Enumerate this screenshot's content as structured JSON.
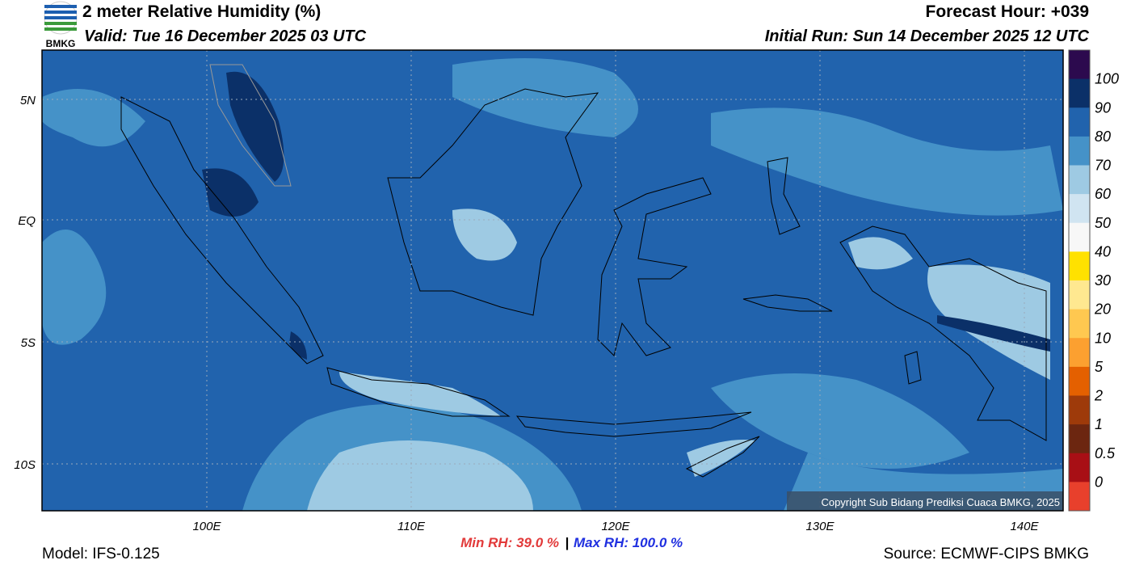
{
  "header": {
    "logo": "BMKG",
    "title": "2 meter Relative Humidity (%)",
    "valid": "Valid: Tue 16 December 2025 03 UTC",
    "forecast": "Forecast Hour: +039",
    "initial": "Initial Run: Sun 14 December 2025 12 UTC"
  },
  "map": {
    "lat_labels": [
      "5N",
      "EQ",
      "5S",
      "10S"
    ],
    "lon_labels": [
      "100E",
      "110E",
      "120E",
      "130E",
      "140E"
    ],
    "copyright": "Copyright Sub Bidang Prediksi Cuaca BMKG, 2025"
  },
  "colorbar": {
    "labels": [
      "100",
      "90",
      "80",
      "70",
      "60",
      "50",
      "40",
      "30",
      "20",
      "10",
      "5",
      "2",
      "1",
      "0.5",
      "0"
    ],
    "colors": [
      "#2c0a4e",
      "#0b3068",
      "#2163ad",
      "#4592c8",
      "#9ecae3",
      "#d0e4f1",
      "#f7f7f7",
      "#ffe100",
      "#ffe890",
      "#ffc850",
      "#fca030",
      "#e46000",
      "#9e3a0a",
      "#6c2610",
      "#a80f15",
      "#e8402c"
    ]
  },
  "footer": {
    "model": "Model: IFS-0.125",
    "min": "Min RH:  39.0 %",
    "separator": "|",
    "max": "Max RH: 100.0 %",
    "source": "Source: ECMWF-CIPS BMKG"
  }
}
